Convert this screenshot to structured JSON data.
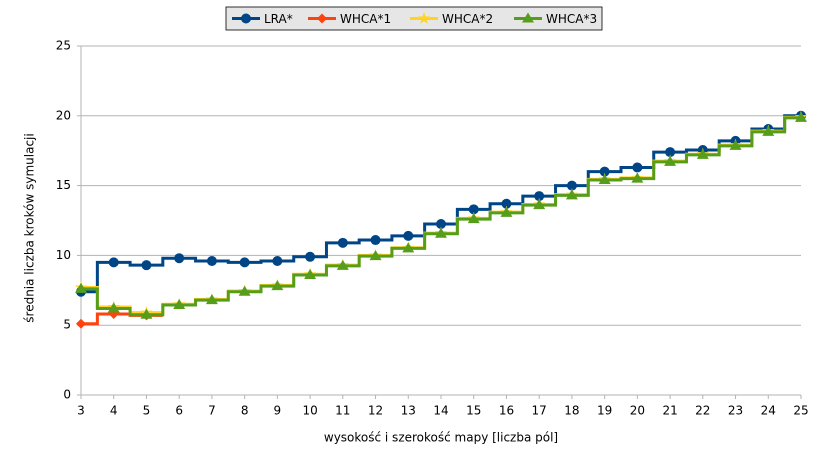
{
  "chart_data": {
    "type": "line",
    "step": true,
    "x_label": "wysokość i szerokość mapy [liczba pól]",
    "y_label": "średnia liczba kroków symulacji",
    "x": [
      3,
      4,
      5,
      6,
      7,
      8,
      9,
      10,
      11,
      12,
      13,
      14,
      15,
      16,
      17,
      18,
      19,
      20,
      21,
      22,
      23,
      24,
      25
    ],
    "xlim": [
      3,
      25
    ],
    "xticks": [
      3,
      4,
      5,
      6,
      7,
      8,
      9,
      10,
      11,
      12,
      13,
      14,
      15,
      16,
      17,
      18,
      19,
      20,
      21,
      22,
      23,
      24,
      25
    ],
    "ylim": [
      0,
      25
    ],
    "yticks": [
      0,
      5,
      10,
      15,
      20,
      25
    ],
    "grid": true,
    "legend": "top",
    "series": [
      {
        "name": "LRA*",
        "color": "#004586",
        "marker": "circle",
        "values": [
          7.4,
          9.5,
          9.3,
          9.8,
          9.6,
          9.5,
          9.6,
          9.9,
          10.9,
          11.1,
          11.4,
          12.25,
          13.3,
          13.7,
          14.25,
          15.0,
          16.0,
          16.3,
          17.4,
          17.55,
          18.2,
          19.05,
          20.0
        ]
      },
      {
        "name": "WHCA*1",
        "color": "#ff420e",
        "marker": "diamond",
        "values": [
          5.1,
          5.8,
          5.7,
          null,
          null,
          null,
          null,
          null,
          null,
          null,
          null,
          null,
          null,
          null,
          null,
          null,
          null,
          null,
          null,
          null,
          null,
          null,
          null
        ]
      },
      {
        "name": "WHCA*2",
        "color": "#ffd320",
        "marker": "star",
        "values": [
          7.7,
          6.3,
          5.9,
          6.5,
          6.85,
          7.45,
          7.85,
          8.65,
          9.3,
          10.0,
          10.55,
          11.6,
          12.65,
          13.1,
          13.65,
          14.35,
          15.45,
          15.55,
          16.75,
          17.25,
          17.9,
          18.9,
          19.9
        ]
      },
      {
        "name": "WHCA*3",
        "color": "#579d1c",
        "marker": "triangle",
        "values": [
          7.6,
          6.2,
          5.75,
          6.45,
          6.8,
          7.4,
          7.8,
          8.6,
          9.25,
          9.95,
          10.5,
          11.55,
          12.6,
          13.05,
          13.6,
          14.3,
          15.4,
          15.5,
          16.7,
          17.2,
          17.85,
          18.85,
          19.85
        ]
      }
    ]
  }
}
